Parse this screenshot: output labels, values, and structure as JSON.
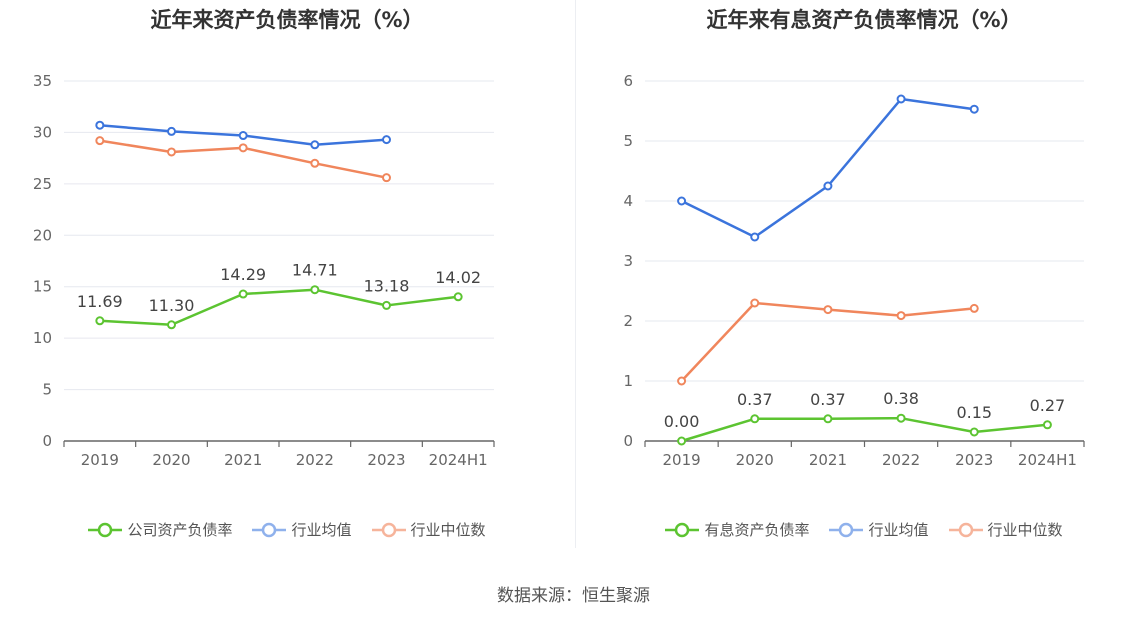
{
  "chart_data": [
    {
      "type": "line",
      "title": "近年来资产负债率情况（%）",
      "categories": [
        "2019",
        "2020",
        "2021",
        "2022",
        "2023",
        "2024H1"
      ],
      "ylim": [
        0,
        35
      ],
      "yticks": [
        0,
        5,
        10,
        15,
        20,
        25,
        30,
        35
      ],
      "grid": true,
      "legend_position": "bottom",
      "series": [
        {
          "name": "公司资产负债率",
          "color": "#5cc431",
          "values": [
            11.69,
            11.3,
            14.29,
            14.71,
            13.18,
            14.02
          ],
          "labels": [
            "11.69",
            "11.30",
            "14.29",
            "14.71",
            "13.18",
            "14.02"
          ]
        },
        {
          "name": "行业均值",
          "color": "#3b74dc",
          "values": [
            30.7,
            30.1,
            29.7,
            28.8,
            29.3,
            null
          ]
        },
        {
          "name": "行业中位数",
          "color": "#f0865c",
          "values": [
            29.2,
            28.1,
            28.5,
            27.0,
            25.6,
            null
          ]
        }
      ]
    },
    {
      "type": "line",
      "title": "近年来有息资产负债率情况（%）",
      "categories": [
        "2019",
        "2020",
        "2021",
        "2022",
        "2023",
        "2024H1"
      ],
      "ylim": [
        0,
        6
      ],
      "yticks": [
        0,
        1,
        2,
        3,
        4,
        5,
        6
      ],
      "grid": true,
      "legend_position": "bottom",
      "series": [
        {
          "name": "有息资产负债率",
          "color": "#5cc431",
          "values": [
            0.0,
            0.37,
            0.37,
            0.38,
            0.15,
            0.27
          ],
          "labels": [
            "0.00",
            "0.37",
            "0.37",
            "0.38",
            "0.15",
            "0.27"
          ]
        },
        {
          "name": "行业均值",
          "color": "#3b74dc",
          "values": [
            4.0,
            3.4,
            4.25,
            5.7,
            5.53,
            null
          ]
        },
        {
          "name": "行业中位数",
          "color": "#f0865c",
          "values": [
            1.0,
            2.3,
            2.19,
            2.09,
            2.21,
            null
          ]
        }
      ]
    }
  ],
  "source": "数据来源：恒生聚源",
  "colors": {
    "grid": "#e6e8ef",
    "axis": "#666666",
    "tick_text": "#666666",
    "label_text": "#444444"
  }
}
